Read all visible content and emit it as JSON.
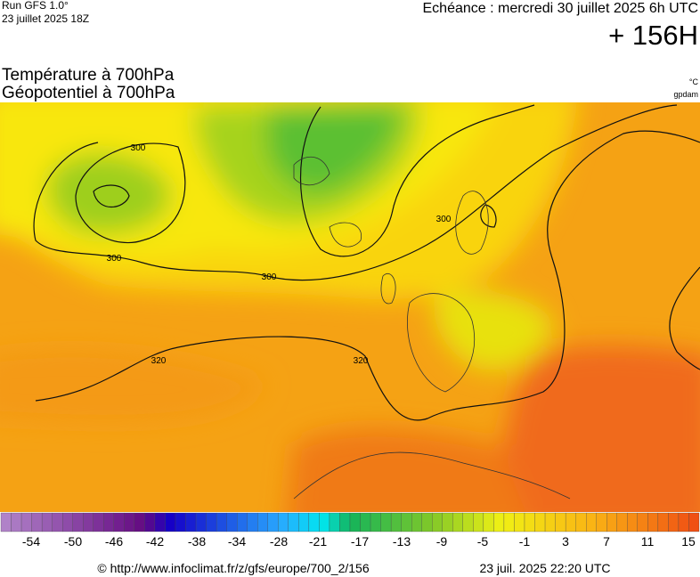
{
  "header": {
    "run": "Run GFS 1.0°",
    "run_date": "23 juillet 2025 18Z",
    "valid": "Echéance : mercredi 30 juillet 2025 6h UTC",
    "lead": "+ 156H"
  },
  "map": {
    "title_1": "Température à 700hPa",
    "title_2": "Géopotentiel à 700hPa",
    "unit_1": "°C",
    "unit_2": "gpdam",
    "contour_labels": [
      "300",
      "300",
      "300",
      "300",
      "320",
      "320"
    ]
  },
  "legend": {
    "labels": [
      -54,
      -50,
      -46,
      -42,
      -38,
      -34,
      -28,
      -21,
      -17,
      -13,
      -9,
      -5,
      -1,
      3,
      7,
      11,
      15
    ]
  },
  "footer": {
    "source": "© http://www.infoclimat.fr/z/gfs/europe/700_2/156",
    "generated": "23 juil. 2025 22:20 UTC"
  }
}
